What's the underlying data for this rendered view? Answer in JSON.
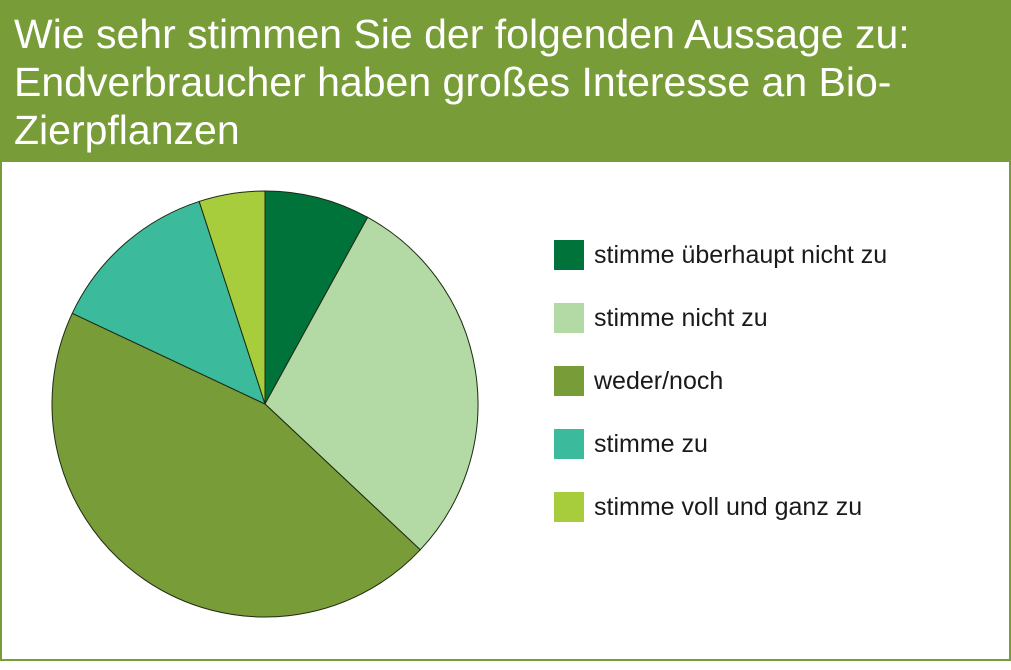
{
  "chart_data": {
    "type": "pie",
    "title": "Wie sehr stimmen Sie der folgenden Aussage zu: Endverbraucher haben großes Interesse an Bio-Zierpflanzen",
    "legend_position": "right",
    "slices": [
      {
        "label": "stimme überhaupt nicht zu",
        "value": 8,
        "color": "#00733b"
      },
      {
        "label": "stimme nicht zu",
        "value": 29,
        "color": "#b3d9a4"
      },
      {
        "label": "weder/noch",
        "value": 45,
        "color": "#789c38"
      },
      {
        "label": "stimme zu",
        "value": 13,
        "color": "#3cbb9c"
      },
      {
        "label": "stimme voll und ganz zu",
        "value": 5,
        "color": "#a8cd3c"
      }
    ]
  }
}
